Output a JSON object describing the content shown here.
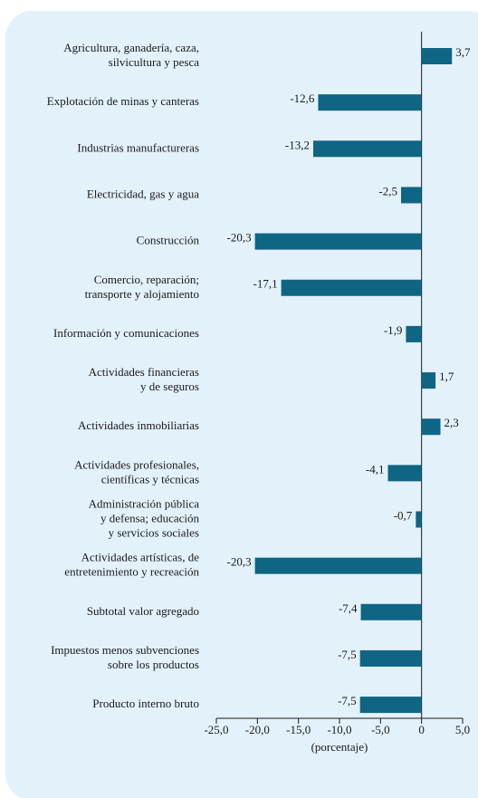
{
  "chart_data": {
    "type": "bar",
    "orientation": "horizontal",
    "categories": [
      "Agricultura, ganadería, caza,\nsilvicultura y pesca",
      "Explotación de minas y canteras",
      "Industrias manufactureras",
      "Electricidad, gas y agua",
      "Construcción",
      "Comercio, reparación;\ntransporte y alojamiento",
      "Información y comunicaciones",
      "Actividades financieras\ny de seguros",
      "Actividades inmobiliarias",
      "Actividades profesionales,\ncientíficas y técnicas",
      "Administración pública\ny defensa; educación\ny servicios sociales",
      "Actividades artísticas, de\nentretenimiento y recreación",
      "Subtotal valor agregado",
      "Impuestos menos subvenciones\nsobre los productos",
      "Producto interno bruto"
    ],
    "values": [
      3.7,
      -12.6,
      -13.2,
      -2.5,
      -20.3,
      -17.1,
      -1.9,
      1.7,
      2.3,
      -4.1,
      -0.7,
      -20.3,
      -7.4,
      -7.5,
      -7.5
    ],
    "value_labels": [
      "3,7",
      "-12,6",
      "-13,2",
      "-2,5",
      "-20,3",
      "-17,1",
      "-1,9",
      "1,7",
      "2,3",
      "-4,1",
      "-0,7",
      "-20,3",
      "-7,4",
      "-7,5",
      "-7,5"
    ],
    "color": "#0f6584",
    "xlabel": "(porcentaje)",
    "xlim": [
      -25,
      5
    ],
    "xticks": [
      {
        "value": -25,
        "label": "-25,0"
      },
      {
        "value": -20,
        "label": "-20,0"
      },
      {
        "value": -15,
        "label": "-15,0"
      },
      {
        "value": -10,
        "label": "-10,0"
      },
      {
        "value": -5,
        "label": "-5,0"
      },
      0,
      {
        "value": 5,
        "label": "5,0"
      }
    ]
  }
}
